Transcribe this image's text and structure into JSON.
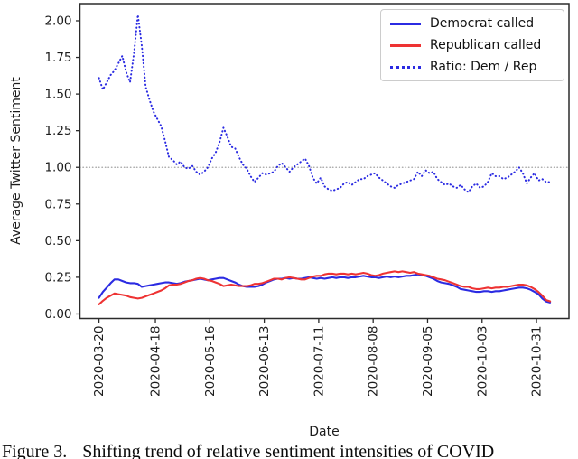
{
  "figure": {
    "caption_label": "Figure 3.",
    "caption_text": "Shifting trend of relative sentiment intensities of COVID"
  },
  "colors": {
    "democrat": "#2b2be2",
    "republican": "#ee3333",
    "ratio": "#2b2be2",
    "reference_line": "#adadad",
    "axis": "#2b2b2b",
    "tick_text": "#1c1c1c"
  },
  "chart_data": {
    "type": "line",
    "title": "",
    "xlabel": "Date",
    "ylabel": "Average Twitter Sentiment",
    "grid": false,
    "legend_position": "upper right",
    "reference_line_y": 1.0,
    "ylim": [
      -0.031,
      2.117
    ],
    "xlim_days": [
      -9.8,
      241.7
    ],
    "y_tick_values": [
      0.0,
      0.25,
      0.5,
      0.75,
      1.0,
      1.25,
      1.5,
      1.75,
      2.0
    ],
    "y_tick_labels": [
      "0.00",
      "0.25",
      "0.50",
      "0.75",
      "1.00",
      "1.25",
      "1.50",
      "1.75",
      "2.00"
    ],
    "x_tick_days": [
      0,
      29,
      57,
      85,
      113,
      141,
      169,
      197,
      225
    ],
    "x_tick_labels": [
      "2020-03-20",
      "2020-04-18",
      "2020-05-16",
      "2020-06-13",
      "2020-07-11",
      "2020-08-08",
      "2020-09-05",
      "2020-10-03",
      "2020-10-31"
    ],
    "x_start_day": 0,
    "x_step_days": 2,
    "series": [
      {
        "name": "Democrat called",
        "style": "solid",
        "color_key": "democrat",
        "values": [
          0.11,
          0.15,
          0.18,
          0.21,
          0.235,
          0.235,
          0.225,
          0.215,
          0.21,
          0.21,
          0.205,
          0.185,
          0.19,
          0.195,
          0.2,
          0.205,
          0.21,
          0.215,
          0.215,
          0.21,
          0.205,
          0.21,
          0.22,
          0.225,
          0.23,
          0.235,
          0.24,
          0.235,
          0.23,
          0.235,
          0.24,
          0.245,
          0.245,
          0.235,
          0.225,
          0.215,
          0.2,
          0.19,
          0.185,
          0.185,
          0.185,
          0.19,
          0.2,
          0.215,
          0.225,
          0.235,
          0.24,
          0.24,
          0.245,
          0.24,
          0.245,
          0.24,
          0.24,
          0.245,
          0.25,
          0.245,
          0.24,
          0.245,
          0.24,
          0.245,
          0.25,
          0.245,
          0.25,
          0.25,
          0.245,
          0.25,
          0.25,
          0.255,
          0.26,
          0.255,
          0.25,
          0.25,
          0.245,
          0.25,
          0.255,
          0.25,
          0.255,
          0.25,
          0.255,
          0.26,
          0.26,
          0.265,
          0.27,
          0.265,
          0.26,
          0.25,
          0.24,
          0.225,
          0.215,
          0.21,
          0.205,
          0.195,
          0.185,
          0.17,
          0.165,
          0.16,
          0.155,
          0.15,
          0.15,
          0.155,
          0.155,
          0.15,
          0.155,
          0.155,
          0.16,
          0.165,
          0.17,
          0.175,
          0.18,
          0.18,
          0.175,
          0.165,
          0.15,
          0.135,
          0.105,
          0.085,
          0.078
        ]
      },
      {
        "name": "Republican called",
        "style": "solid",
        "color_key": "republican",
        "values": [
          0.065,
          0.09,
          0.11,
          0.125,
          0.14,
          0.135,
          0.13,
          0.125,
          0.115,
          0.11,
          0.105,
          0.11,
          0.12,
          0.13,
          0.14,
          0.15,
          0.16,
          0.175,
          0.195,
          0.2,
          0.2,
          0.205,
          0.215,
          0.225,
          0.23,
          0.24,
          0.245,
          0.24,
          0.23,
          0.225,
          0.215,
          0.205,
          0.19,
          0.195,
          0.2,
          0.195,
          0.19,
          0.19,
          0.19,
          0.195,
          0.205,
          0.205,
          0.21,
          0.22,
          0.23,
          0.24,
          0.24,
          0.235,
          0.245,
          0.25,
          0.245,
          0.24,
          0.235,
          0.235,
          0.245,
          0.255,
          0.26,
          0.26,
          0.27,
          0.275,
          0.275,
          0.27,
          0.275,
          0.275,
          0.27,
          0.275,
          0.27,
          0.275,
          0.28,
          0.275,
          0.265,
          0.26,
          0.265,
          0.275,
          0.28,
          0.285,
          0.29,
          0.285,
          0.29,
          0.285,
          0.28,
          0.285,
          0.275,
          0.27,
          0.265,
          0.26,
          0.25,
          0.24,
          0.235,
          0.23,
          0.22,
          0.21,
          0.2,
          0.19,
          0.185,
          0.185,
          0.175,
          0.17,
          0.17,
          0.175,
          0.18,
          0.175,
          0.18,
          0.18,
          0.185,
          0.185,
          0.19,
          0.195,
          0.2,
          0.2,
          0.195,
          0.185,
          0.17,
          0.15,
          0.125,
          0.095,
          0.086
        ]
      },
      {
        "name": "Ratio: Dem / Rep",
        "style": "dotted",
        "color_key": "ratio",
        "values": [
          1.61,
          1.53,
          1.58,
          1.63,
          1.66,
          1.71,
          1.76,
          1.65,
          1.58,
          1.78,
          2.04,
          1.83,
          1.55,
          1.46,
          1.38,
          1.33,
          1.28,
          1.18,
          1.07,
          1.05,
          1.02,
          1.04,
          1.0,
          0.99,
          1.01,
          0.97,
          0.95,
          0.97,
          1.0,
          1.06,
          1.1,
          1.17,
          1.27,
          1.21,
          1.14,
          1.13,
          1.07,
          1.02,
          0.99,
          0.94,
          0.9,
          0.93,
          0.96,
          0.95,
          0.96,
          0.97,
          1.01,
          1.03,
          1.0,
          0.97,
          1.0,
          1.02,
          1.04,
          1.06,
          1.01,
          0.93,
          0.89,
          0.93,
          0.87,
          0.85,
          0.84,
          0.85,
          0.86,
          0.89,
          0.9,
          0.88,
          0.9,
          0.92,
          0.92,
          0.94,
          0.95,
          0.96,
          0.93,
          0.91,
          0.89,
          0.87,
          0.86,
          0.88,
          0.89,
          0.9,
          0.91,
          0.92,
          0.97,
          0.94,
          0.98,
          0.96,
          0.97,
          0.92,
          0.9,
          0.88,
          0.89,
          0.87,
          0.86,
          0.88,
          0.85,
          0.83,
          0.87,
          0.89,
          0.86,
          0.87,
          0.9,
          0.96,
          0.94,
          0.94,
          0.92,
          0.93,
          0.95,
          0.97,
          1.0,
          0.96,
          0.89,
          0.93,
          0.96,
          0.91,
          0.92,
          0.9,
          0.9
        ]
      }
    ]
  }
}
